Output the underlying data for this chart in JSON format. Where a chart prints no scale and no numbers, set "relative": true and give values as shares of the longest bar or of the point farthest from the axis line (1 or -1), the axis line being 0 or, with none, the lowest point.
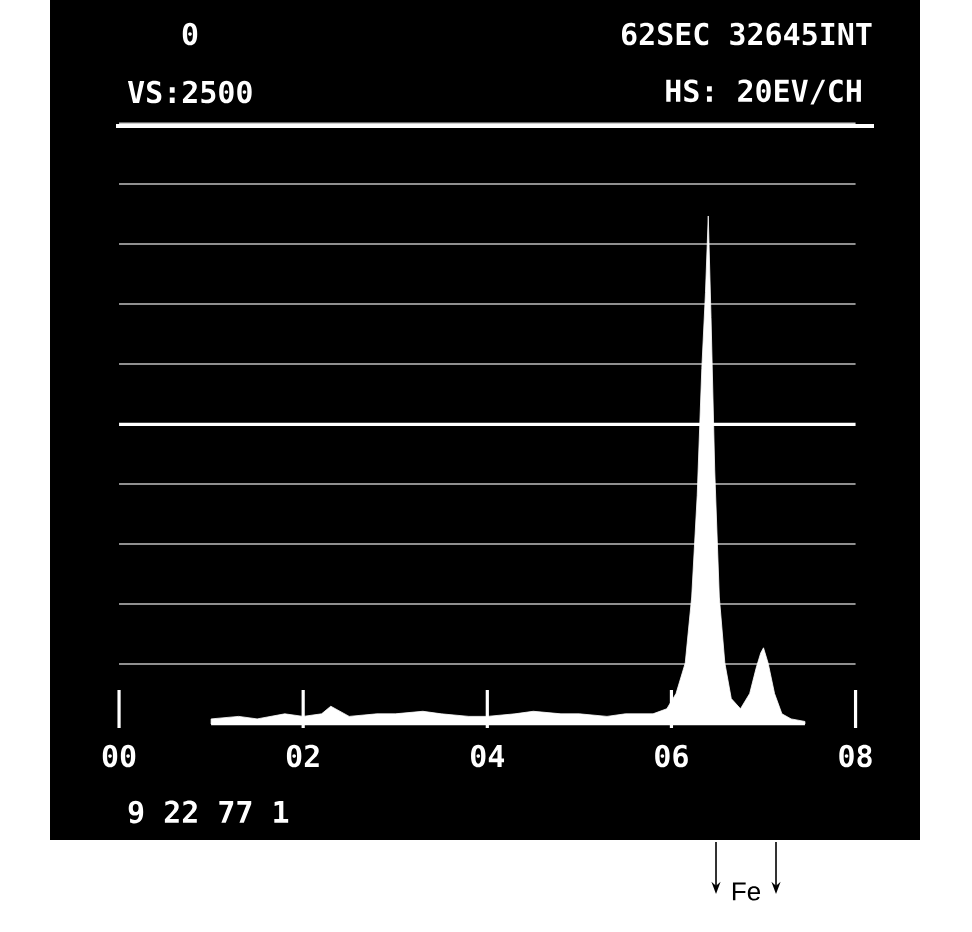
{
  "chart_data": {
    "type": "area",
    "relative": true,
    "color": "#ffffff",
    "grid": true,
    "x": [
      1.0,
      1.3,
      1.5,
      1.8,
      2.0,
      2.2,
      2.3,
      2.5,
      2.8,
      3.0,
      3.3,
      3.5,
      3.8,
      4.0,
      4.3,
      4.5,
      4.8,
      5.0,
      5.3,
      5.5,
      5.8,
      5.95,
      6.05,
      6.15,
      6.22,
      6.28,
      6.33,
      6.37,
      6.4,
      6.43,
      6.47,
      6.52,
      6.58,
      6.65,
      6.75,
      6.85,
      6.92,
      6.97,
      7.0,
      7.05,
      7.12,
      7.2,
      7.3,
      7.45
    ],
    "values": [
      0.01,
      0.015,
      0.01,
      0.02,
      0.015,
      0.02,
      0.035,
      0.015,
      0.02,
      0.02,
      0.025,
      0.02,
      0.015,
      0.015,
      0.02,
      0.025,
      0.02,
      0.02,
      0.015,
      0.02,
      0.02,
      0.03,
      0.06,
      0.12,
      0.25,
      0.45,
      0.7,
      0.85,
      1,
      0.8,
      0.5,
      0.25,
      0.12,
      0.05,
      0.03,
      0.06,
      0.11,
      0.14,
      0.15,
      0.12,
      0.06,
      0.02,
      0.01,
      0.005
    ],
    "xlim": [
      -0.75,
      8.7
    ],
    "ref_lines": [
      {
        "axis": "y",
        "value": 0.59,
        "color": "#ffffff"
      }
    ],
    "xticks": [
      {
        "value": 0,
        "label": "00"
      },
      {
        "value": 2,
        "label": "02"
      },
      {
        "value": 4,
        "label": "04"
      },
      {
        "value": 6,
        "label": "06"
      },
      {
        "value": 8,
        "label": "08"
      }
    ],
    "annotations": [
      "0",
      "62SEC 32645INT",
      "VS:2500",
      "HS: 20EV/CH",
      "9 22 77 1",
      "Fe"
    ]
  }
}
